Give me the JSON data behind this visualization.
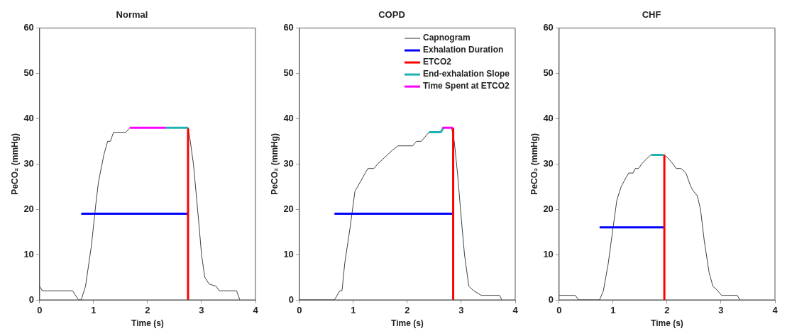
{
  "chart_data": [
    {
      "type": "line",
      "title": "Normal",
      "xlabel": "Time (s)",
      "ylabel": "PeCO₂ (mmHg)",
      "xlim": [
        0,
        4
      ],
      "xticks": [
        0,
        1,
        2,
        3,
        4
      ],
      "ylim": [
        0,
        60
      ],
      "yticks": [
        0,
        10,
        20,
        30,
        40,
        50,
        60
      ],
      "grid": false,
      "legend": false,
      "series": [
        {
          "color": "#404040",
          "x": [
            0,
            0.05,
            0.61,
            0.72,
            0.77,
            0.85,
            0.96,
            1.04,
            1.09,
            1.19,
            1.26,
            1.31,
            1.37,
            1.6,
            1.67,
            2.75,
            2.78,
            2.85,
            2.95,
            3.0,
            3.06,
            3.14,
            3.27,
            3.33,
            3.65,
            3.71
          ],
          "values": [
            3,
            2,
            2,
            0,
            0,
            3,
            12,
            21,
            26,
            32,
            35,
            35,
            37,
            37,
            38,
            38,
            36,
            30,
            17,
            10,
            5,
            3.5,
            3,
            2,
            2,
            0
          ]
        },
        {
          "color": "#0000ff",
          "x": [
            0.77,
            2.75
          ],
          "values": [
            19,
            19
          ]
        },
        {
          "color": "#ff0000",
          "x": [
            2.75,
            2.75
          ],
          "values": [
            0,
            38
          ]
        },
        {
          "color": "#20b2b2",
          "x": [
            2.34,
            2.75
          ],
          "values": [
            38,
            38
          ]
        },
        {
          "color": "#ff00ff",
          "x": [
            1.67,
            2.34
          ],
          "values": [
            38,
            38
          ]
        }
      ]
    },
    {
      "type": "line",
      "title": "COPD",
      "xlabel": "Time (s)",
      "ylabel": "PeCO₂ (mmHg)",
      "xlim": [
        0,
        4
      ],
      "xticks": [
        0,
        1,
        2,
        3,
        4
      ],
      "ylim": [
        0,
        60
      ],
      "yticks": [
        0,
        10,
        20,
        30,
        40,
        50,
        60
      ],
      "grid": false,
      "legend": "top right",
      "series": [
        {
          "name": "Capnogram",
          "color": "#404040",
          "x": [
            0,
            0.65,
            0.75,
            0.79,
            0.84,
            0.94,
            1.03,
            1.08,
            1.22,
            1.27,
            1.38,
            1.45,
            1.54,
            1.63,
            1.72,
            1.83,
            2.1,
            2.17,
            2.26,
            2.33,
            2.4,
            2.62,
            2.67,
            2.82,
            2.87,
            2.93,
            3.0,
            3.06,
            3.14,
            3.23,
            3.37,
            3.71,
            3.75
          ],
          "values": [
            0,
            0,
            2,
            2,
            8,
            16,
            24,
            25,
            28,
            29,
            29,
            30,
            31,
            32,
            33,
            34,
            34,
            35,
            35,
            36,
            37,
            37,
            38,
            38,
            35,
            28,
            18,
            10,
            3,
            2,
            1,
            1,
            0
          ]
        },
        {
          "name": "Exhalation Duration",
          "color": "#0000ff",
          "x": [
            0.65,
            2.85
          ],
          "values": [
            19,
            19
          ]
        },
        {
          "name": "ETCO2",
          "color": "#ff0000",
          "x": [
            2.85,
            2.85
          ],
          "values": [
            0,
            38
          ]
        },
        {
          "name": "End-exhalation Slope",
          "color": "#20b2b2",
          "x": [
            2.4,
            2.62,
            2.67
          ],
          "values": [
            37,
            37,
            38
          ]
        },
        {
          "name": "Time Spent at ETCO2",
          "color": "#ff00ff",
          "x": [
            2.65,
            2.85
          ],
          "values": [
            38,
            38
          ]
        }
      ]
    },
    {
      "type": "line",
      "title": "CHF",
      "xlabel": "Time (s)",
      "ylabel": "PeCO₂ (mmHg)",
      "xlim": [
        0,
        4
      ],
      "xticks": [
        0,
        1,
        2,
        3,
        4
      ],
      "ylim": [
        0,
        60
      ],
      "yticks": [
        0,
        10,
        20,
        30,
        40,
        50,
        60
      ],
      "grid": false,
      "legend": false,
      "series": [
        {
          "color": "#404040",
          "x": [
            0,
            0.3,
            0.36,
            0.75,
            0.82,
            0.91,
            1.0,
            1.07,
            1.15,
            1.24,
            1.29,
            1.37,
            1.41,
            1.47,
            1.53,
            1.61,
            1.7,
            1.95,
            2.04,
            2.11,
            2.17,
            2.26,
            2.35,
            2.44,
            2.49,
            2.56,
            2.62,
            2.69,
            2.78,
            2.85,
            2.94,
            3.01,
            3.3,
            3.35
          ],
          "values": [
            1,
            1,
            0,
            0,
            2,
            8,
            16,
            22,
            25,
            27,
            28,
            28,
            29,
            29,
            30,
            31,
            32,
            32,
            31,
            30,
            29,
            29,
            28,
            25,
            24,
            23,
            20,
            13,
            6,
            3,
            2,
            1,
            1,
            0
          ]
        },
        {
          "color": "#0000ff",
          "x": [
            0.75,
            1.95
          ],
          "values": [
            16,
            16
          ]
        },
        {
          "color": "#ff0000",
          "x": [
            1.95,
            1.95
          ],
          "values": [
            0,
            32
          ]
        },
        {
          "color": "#20b2b2",
          "x": [
            1.71,
            1.93
          ],
          "values": [
            32,
            32
          ]
        }
      ]
    }
  ]
}
